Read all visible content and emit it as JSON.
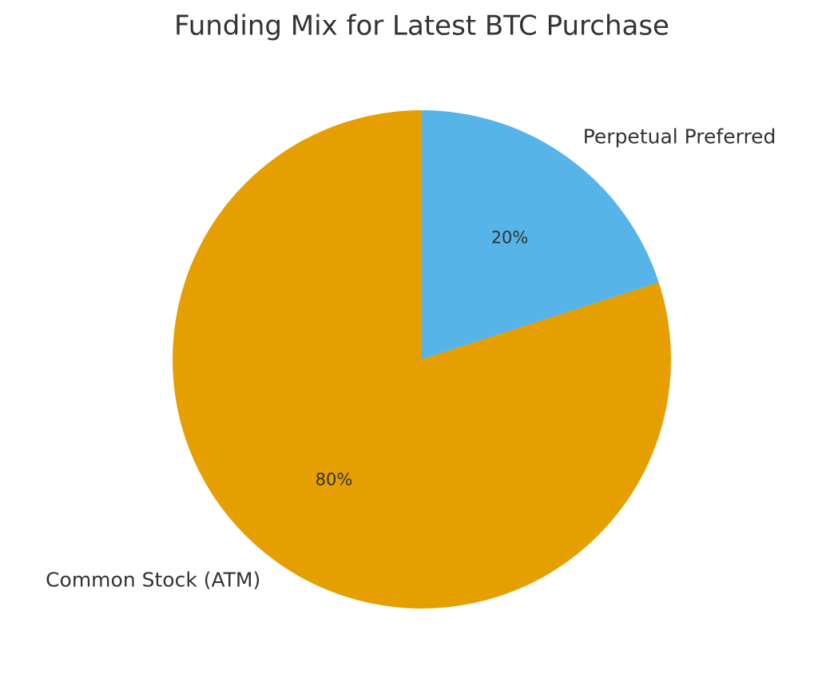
{
  "chart_data": {
    "type": "pie",
    "title": "Funding Mix for Latest BTC Purchase",
    "categories": [
      "Common Stock (ATM)",
      "Perpetual Preferred"
    ],
    "values": [
      80,
      20
    ],
    "value_labels": [
      "80%",
      "20%"
    ],
    "colors": [
      "#E69F00",
      "#56B4E9"
    ]
  }
}
